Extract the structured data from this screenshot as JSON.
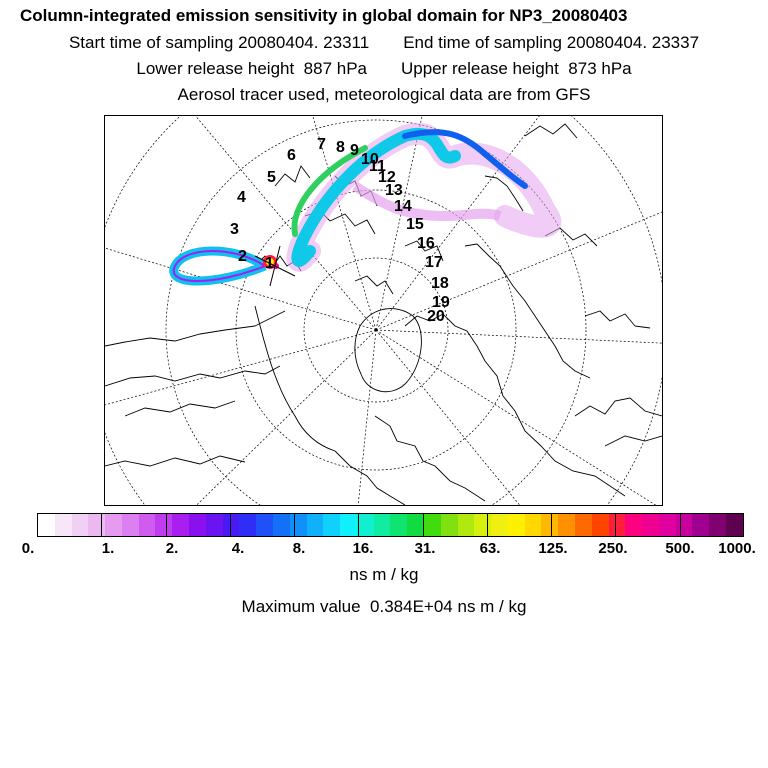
{
  "title": "Column-integrated emission sensitivity in global domain for NP3_20080403",
  "sampling": {
    "start_label": "Start time of sampling",
    "start_value": "20080404. 23311",
    "end_label": "End time of sampling",
    "end_value": "20080404. 23337"
  },
  "release": {
    "lower_label": "Lower release height",
    "lower_value": "887 hPa",
    "upper_label": "Upper release height",
    "upper_value": "873 hPa"
  },
  "subtitle": "Aerosol tracer used, meteorological data are from GFS",
  "colorbar": {
    "colors": [
      "#ffffff",
      "#f7e6f7",
      "#f0d0f5",
      "#ebb8f2",
      "#e59cf0",
      "#dc7ff0",
      "#cf5cef",
      "#c03cef",
      "#a81ff0",
      "#8a10f0",
      "#6a14f2",
      "#4a1af5",
      "#2f2ef7",
      "#2050f8",
      "#1570f8",
      "#1090fa",
      "#10b0fb",
      "#10d0fc",
      "#10f0fd",
      "#10f0d0",
      "#10eca0",
      "#10e470",
      "#10dc40",
      "#40dc10",
      "#80e010",
      "#b0e810",
      "#d8f010",
      "#f0f010",
      "#fff000",
      "#ffd800",
      "#ffb800",
      "#ff9000",
      "#ff6a00",
      "#ff4400",
      "#ff1f3a",
      "#ff0080",
      "#f00090",
      "#e000a0",
      "#c800a0",
      "#a00090",
      "#800070",
      "#600050"
    ],
    "tick_labels": [
      "0.",
      "1.",
      "2.",
      "4.",
      "8.",
      "16.",
      "31.",
      "63.",
      "125.",
      "250.",
      "500.",
      "1000."
    ]
  },
  "units": "ns m / kg",
  "maximum": {
    "label": "Maximum value",
    "value": "0.384E+04 ns m / kg"
  },
  "trajectory_markers": [
    "1",
    "2",
    "3",
    "4",
    "5",
    "6",
    "7",
    "8",
    "9",
    "10",
    "11",
    "12",
    "13",
    "14",
    "15",
    "16",
    "17",
    "18",
    "19",
    "20"
  ]
}
